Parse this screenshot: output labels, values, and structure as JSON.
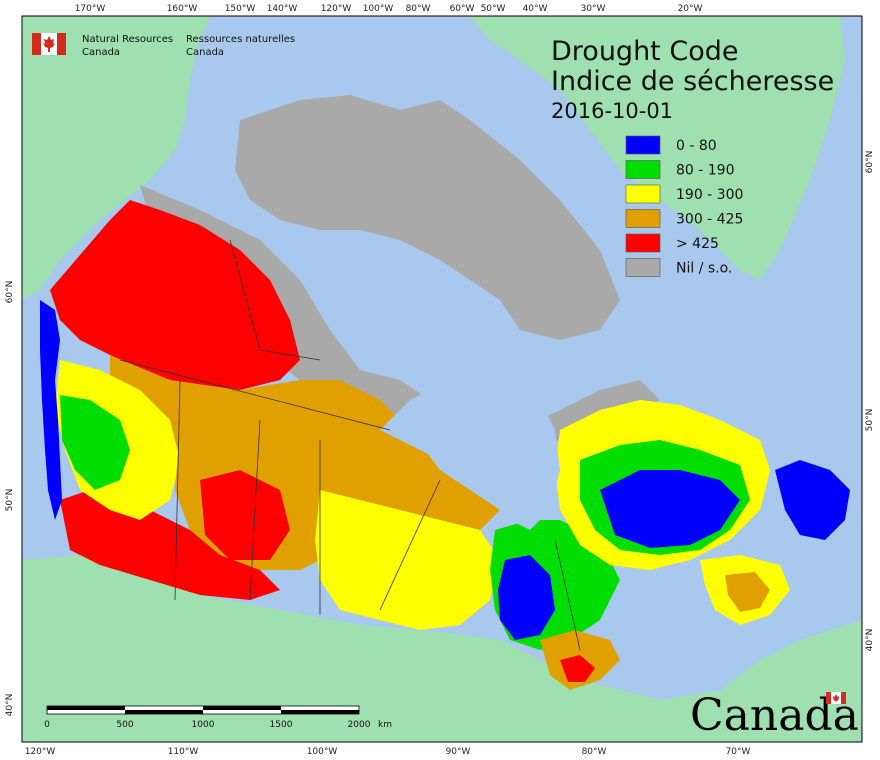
{
  "title": {
    "line1": "Drought Code",
    "line2": "Indice de sécheresse",
    "date": "2016-10-01"
  },
  "agency": {
    "en_line1": "Natural Resources",
    "en_line2": "Canada",
    "fr_line1": "Ressources naturelles",
    "fr_line2": "Canada",
    "flag_color": "#d52b1e"
  },
  "legend": [
    {
      "label": "0 - 80",
      "color": "#0000ff"
    },
    {
      "label": "80 - 190",
      "color": "#00dd00"
    },
    {
      "label": "190 - 300",
      "color": "#ffff00"
    },
    {
      "label": "300 - 425",
      "color": "#e0a000"
    },
    {
      "label": "> 425",
      "color": "#ff0000"
    },
    {
      "label": "Nil / s.o.",
      "color": "#a9a9a9"
    }
  ],
  "top_ticks": [
    "170°W",
    "160°W",
    "150°W",
    "140°W",
    "120°W",
    "100°W",
    "80°W",
    "60°W",
    "50°W",
    "40°W",
    "30°W",
    "20°W"
  ],
  "bottom_ticks": [
    "120°W",
    "110°W",
    "100°W",
    "90°W",
    "80°W",
    "70°W"
  ],
  "left_ticks": [
    "60°N",
    "50°N",
    "40°N"
  ],
  "right_ticks": [
    "60°N",
    "50°N",
    "40°N"
  ],
  "scale_bar": {
    "labels": [
      "0",
      "500",
      "1000",
      "1500",
      "2000"
    ],
    "unit": "km"
  },
  "wordmark": "Canada",
  "colors": {
    "ocean": "#a9c8ee",
    "land_outside": "#9ee0b0",
    "nil": "#a9a9a9"
  }
}
